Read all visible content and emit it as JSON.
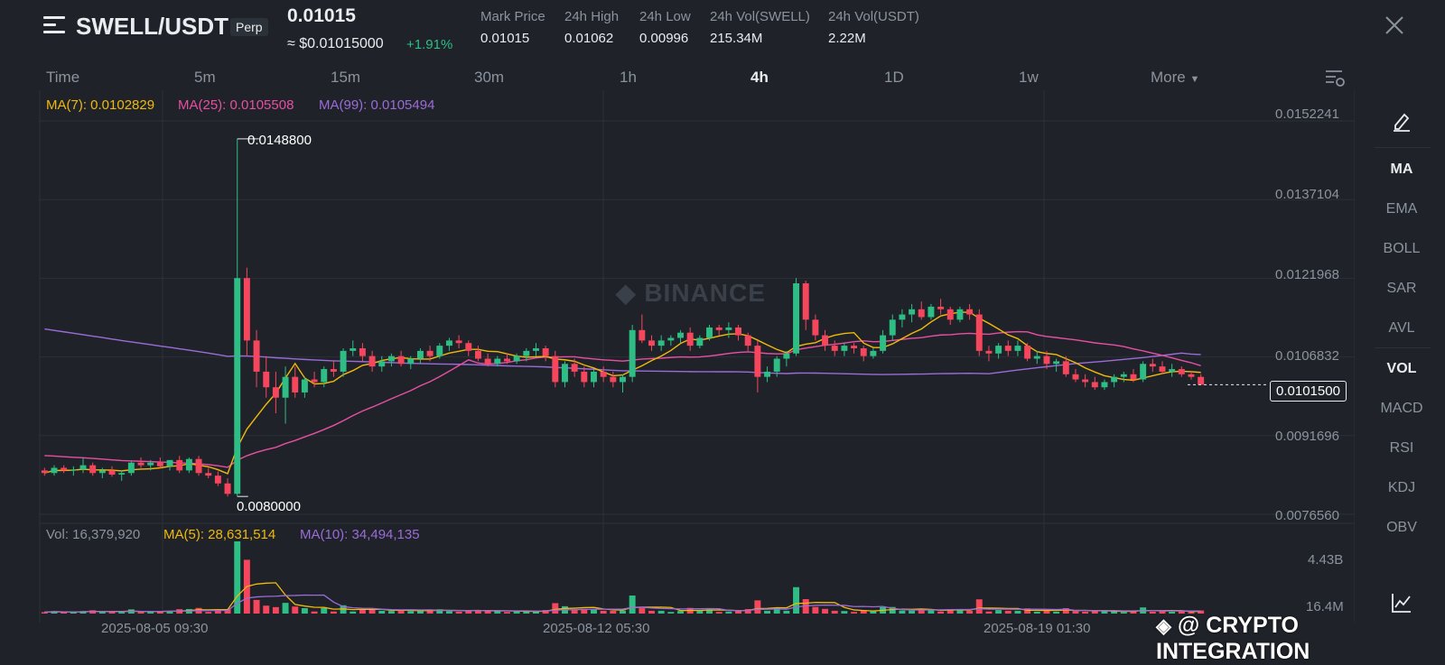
{
  "header": {
    "pair": "SWELL/USDT",
    "contract_type": "Perp",
    "last_price": "0.01015",
    "usd_price": "≈ $0.01015000",
    "change": "+1.91%",
    "stats": [
      {
        "label": "Mark Price",
        "value": "0.01015"
      },
      {
        "label": "24h High",
        "value": "0.01062"
      },
      {
        "label": "24h Low",
        "value": "0.00996"
      },
      {
        "label": "24h Vol(SWELL)",
        "value": "215.34M"
      },
      {
        "label": "24h Vol(USDT)",
        "value": "2.22M"
      }
    ]
  },
  "timeframes": {
    "time": "Time",
    "m5": "5m",
    "m15": "15m",
    "m30": "30m",
    "h1": "1h",
    "h4": "4h",
    "d1": "1D",
    "w1": "1w",
    "more": "More",
    "active": "4h"
  },
  "ma_legend": {
    "ma7": "MA(7): 0.0102829",
    "ma25": "MA(25): 0.0105508",
    "ma99": "MA(99): 0.0105494"
  },
  "vol_legend": {
    "vol": "Vol: 16,379,920",
    "ma5": "MA(5): 28,631,514",
    "ma10": "MA(10): 34,494,135"
  },
  "price_axis": [
    "0.0152241",
    "0.0137104",
    "0.0121968",
    "0.0106832",
    "0.0091696",
    "0.0076560"
  ],
  "volume_axis": [
    "4.43B",
    "16.4M"
  ],
  "high_label": "0.0148800",
  "low_label": "0.0080000",
  "current_price_tag": "0.0101500",
  "dates": [
    "2025-08-05 09:30",
    "2025-08-12 05:30",
    "2025-08-19 01:30"
  ],
  "sidebar": {
    "ma": "MA",
    "ema": "EMA",
    "boll": "BOLL",
    "sar": "SAR",
    "avl": "AVL",
    "vol": "VOL",
    "macd": "MACD",
    "rsi": "RSI",
    "kdj": "KDJ",
    "obv": "OBV"
  },
  "watermark": "BINANCE",
  "overlay_text": "@ CRYPTO INTEGRATION",
  "colors": {
    "up": "#2ebd85",
    "down": "#f6465d",
    "ma7": "#f0b90b",
    "ma25": "#e84fa3",
    "ma99": "#9b6bd8",
    "bg": "#1f2329",
    "muted": "#8b939e"
  },
  "chart_data": {
    "type": "candlestick",
    "price_range": [
      0.007656,
      0.0152241
    ],
    "volume_range": [
      0,
      4430000000
    ],
    "candles": [
      [
        0.0085,
        0.00855,
        0.0084,
        0.00845
      ],
      [
        0.00845,
        0.0086,
        0.0084,
        0.00855
      ],
      [
        0.00855,
        0.0086,
        0.00845,
        0.0085
      ],
      [
        0.0085,
        0.00858,
        0.0084,
        0.00852
      ],
      [
        0.00852,
        0.00875,
        0.00845,
        0.0086
      ],
      [
        0.0086,
        0.00865,
        0.0084,
        0.00845
      ],
      [
        0.00845,
        0.00855,
        0.00835,
        0.0085
      ],
      [
        0.0085,
        0.00858,
        0.00838,
        0.00842
      ],
      [
        0.00842,
        0.0085,
        0.0083,
        0.00845
      ],
      [
        0.00845,
        0.00868,
        0.0084,
        0.00865
      ],
      [
        0.00865,
        0.00875,
        0.00855,
        0.0086
      ],
      [
        0.0086,
        0.0087,
        0.0085,
        0.00865
      ],
      [
        0.00865,
        0.00875,
        0.00855,
        0.00858
      ],
      [
        0.00858,
        0.00868,
        0.0085,
        0.0087
      ],
      [
        0.0087,
        0.00878,
        0.00845,
        0.0085
      ],
      [
        0.0085,
        0.00875,
        0.00845,
        0.00872
      ],
      [
        0.00872,
        0.00878,
        0.0084,
        0.00845
      ],
      [
        0.00845,
        0.00855,
        0.00835,
        0.0084
      ],
      [
        0.0084,
        0.00848,
        0.0082,
        0.00825
      ],
      [
        0.00825,
        0.00835,
        0.008,
        0.00805
      ],
      [
        0.00805,
        0.01488,
        0.008,
        0.0122
      ],
      [
        0.0122,
        0.0124,
        0.0107,
        0.011
      ],
      [
        0.011,
        0.0112,
        0.0101,
        0.0104
      ],
      [
        0.0104,
        0.0107,
        0.0099,
        0.0101
      ],
      [
        0.0101,
        0.0104,
        0.0096,
        0.0099
      ],
      [
        0.0099,
        0.0105,
        0.0094,
        0.0103
      ],
      [
        0.0103,
        0.0105,
        0.0099,
        0.01
      ],
      [
        0.01,
        0.0103,
        0.0099,
        0.01025
      ],
      [
        0.01025,
        0.0104,
        0.0101,
        0.0102
      ],
      [
        0.0102,
        0.0105,
        0.0101,
        0.01045
      ],
      [
        0.01045,
        0.0106,
        0.0103,
        0.0104
      ],
      [
        0.0104,
        0.01085,
        0.0103,
        0.0108
      ],
      [
        0.0108,
        0.011,
        0.0107,
        0.01085
      ],
      [
        0.01085,
        0.01095,
        0.0106,
        0.0107
      ],
      [
        0.0107,
        0.0108,
        0.0104,
        0.0105
      ],
      [
        0.0105,
        0.0107,
        0.0104,
        0.0106
      ],
      [
        0.0106,
        0.01075,
        0.0105,
        0.0107
      ],
      [
        0.0107,
        0.0108,
        0.0105,
        0.01055
      ],
      [
        0.01055,
        0.0107,
        0.01045,
        0.01065
      ],
      [
        0.01065,
        0.01085,
        0.01055,
        0.0108
      ],
      [
        0.0108,
        0.0109,
        0.0106,
        0.0107
      ],
      [
        0.0107,
        0.01095,
        0.01065,
        0.0109
      ],
      [
        0.0109,
        0.01105,
        0.0108,
        0.011
      ],
      [
        0.011,
        0.0111,
        0.01085,
        0.01095
      ],
      [
        0.01095,
        0.011,
        0.0107,
        0.0108
      ],
      [
        0.0108,
        0.0109,
        0.0106,
        0.01065
      ],
      [
        0.01065,
        0.01075,
        0.0105,
        0.01055
      ],
      [
        0.01055,
        0.0107,
        0.0105,
        0.01065
      ],
      [
        0.01065,
        0.01075,
        0.01055,
        0.0106
      ],
      [
        0.0106,
        0.01075,
        0.01055,
        0.0107
      ],
      [
        0.0107,
        0.01085,
        0.0106,
        0.0108
      ],
      [
        0.0108,
        0.01095,
        0.0107,
        0.01085
      ],
      [
        0.01085,
        0.0109,
        0.0106,
        0.0107
      ],
      [
        0.0107,
        0.0108,
        0.0101,
        0.0102
      ],
      [
        0.0102,
        0.0106,
        0.0101,
        0.01055
      ],
      [
        0.01055,
        0.01065,
        0.0103,
        0.0104
      ],
      [
        0.0104,
        0.0105,
        0.0101,
        0.0102
      ],
      [
        0.0102,
        0.01045,
        0.0101,
        0.0104
      ],
      [
        0.0104,
        0.0105,
        0.0102,
        0.0103
      ],
      [
        0.0103,
        0.0104,
        0.0101,
        0.0102
      ],
      [
        0.0102,
        0.01035,
        0.01,
        0.0103
      ],
      [
        0.0103,
        0.0113,
        0.0102,
        0.0112
      ],
      [
        0.0112,
        0.0115,
        0.01095,
        0.011
      ],
      [
        0.011,
        0.0111,
        0.0108,
        0.0109
      ],
      [
        0.0109,
        0.0111,
        0.0108,
        0.011
      ],
      [
        0.011,
        0.0111,
        0.0109,
        0.01105
      ],
      [
        0.01105,
        0.0112,
        0.01095,
        0.01115
      ],
      [
        0.01115,
        0.01125,
        0.0108,
        0.0109
      ],
      [
        0.0109,
        0.0111,
        0.01085,
        0.01105
      ],
      [
        0.01105,
        0.0113,
        0.011,
        0.01125
      ],
      [
        0.01125,
        0.0113,
        0.0111,
        0.0112
      ],
      [
        0.0112,
        0.01135,
        0.01105,
        0.01125
      ],
      [
        0.01125,
        0.0113,
        0.011,
        0.0111
      ],
      [
        0.0111,
        0.01115,
        0.0108,
        0.0109
      ],
      [
        0.0109,
        0.011,
        0.01,
        0.0103
      ],
      [
        0.0103,
        0.0105,
        0.0102,
        0.0104
      ],
      [
        0.0104,
        0.0107,
        0.0103,
        0.01065
      ],
      [
        0.01065,
        0.0108,
        0.0105,
        0.01075
      ],
      [
        0.01075,
        0.0122,
        0.0107,
        0.0121
      ],
      [
        0.0121,
        0.01215,
        0.0112,
        0.0114
      ],
      [
        0.0114,
        0.0115,
        0.011,
        0.0111
      ],
      [
        0.0111,
        0.0112,
        0.0108,
        0.0109
      ],
      [
        0.0109,
        0.011,
        0.0107,
        0.0108
      ],
      [
        0.0108,
        0.01095,
        0.0107,
        0.0109
      ],
      [
        0.0109,
        0.01095,
        0.01075,
        0.01085
      ],
      [
        0.01085,
        0.0109,
        0.0106,
        0.0107
      ],
      [
        0.0107,
        0.01085,
        0.01065,
        0.0108
      ],
      [
        0.0108,
        0.0112,
        0.01075,
        0.0111
      ],
      [
        0.0111,
        0.0115,
        0.011,
        0.0114
      ],
      [
        0.0114,
        0.0116,
        0.01125,
        0.0115
      ],
      [
        0.0115,
        0.0117,
        0.01135,
        0.0116
      ],
      [
        0.0116,
        0.01175,
        0.0114,
        0.01145
      ],
      [
        0.01145,
        0.0117,
        0.0114,
        0.01165
      ],
      [
        0.01165,
        0.0118,
        0.0115,
        0.0116
      ],
      [
        0.0116,
        0.01165,
        0.0113,
        0.0114
      ],
      [
        0.0114,
        0.01165,
        0.01135,
        0.0116
      ],
      [
        0.0116,
        0.0117,
        0.0114,
        0.0115
      ],
      [
        0.0115,
        0.0116,
        0.0107,
        0.0108
      ],
      [
        0.0108,
        0.0109,
        0.0106,
        0.01075
      ],
      [
        0.01075,
        0.01095,
        0.01065,
        0.0109
      ],
      [
        0.0109,
        0.011,
        0.0107,
        0.0108
      ],
      [
        0.0108,
        0.011,
        0.0107,
        0.0109
      ],
      [
        0.0109,
        0.01095,
        0.0106,
        0.01065
      ],
      [
        0.01065,
        0.0108,
        0.01055,
        0.0107
      ],
      [
        0.0107,
        0.0108,
        0.01045,
        0.01055
      ],
      [
        0.01055,
        0.01065,
        0.0104,
        0.0106
      ],
      [
        0.0106,
        0.0107,
        0.0103,
        0.01035
      ],
      [
        0.01035,
        0.01045,
        0.0102,
        0.01025
      ],
      [
        0.01025,
        0.01035,
        0.0101,
        0.0102
      ],
      [
        0.0102,
        0.0103,
        0.01005,
        0.0101
      ],
      [
        0.0101,
        0.01025,
        0.01005,
        0.0102
      ],
      [
        0.0102,
        0.01035,
        0.0101,
        0.0103
      ],
      [
        0.0103,
        0.0104,
        0.0102,
        0.01035
      ],
      [
        0.01035,
        0.01045,
        0.0102,
        0.01025
      ],
      [
        0.01025,
        0.0106,
        0.0102,
        0.01055
      ],
      [
        0.01055,
        0.01065,
        0.0104,
        0.0105
      ],
      [
        0.0105,
        0.0106,
        0.01035,
        0.0104
      ],
      [
        0.0104,
        0.01055,
        0.0103,
        0.01045
      ],
      [
        0.01045,
        0.0105,
        0.0103,
        0.01035
      ],
      [
        0.01035,
        0.0104,
        0.01025,
        0.0103
      ],
      [
        0.0103,
        0.01035,
        0.01015,
        0.01015
      ]
    ],
    "ma7_path_hint": "computed",
    "ma25_start_end": [
      0.0088,
      0.01055
    ],
    "ma99_start_end": [
      0.01125,
      0.01055
    ]
  }
}
